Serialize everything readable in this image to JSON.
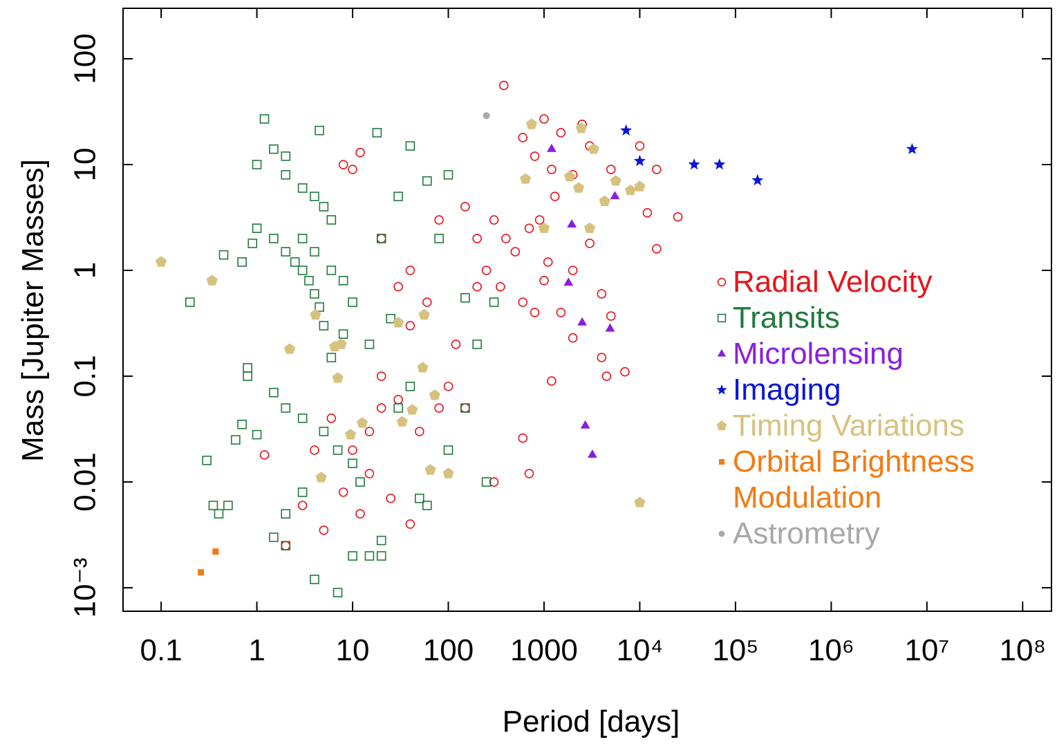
{
  "chart_data": {
    "type": "scatter",
    "x_label": "Period [days]",
    "y_label": "Mass [Jupiter Masses]",
    "xscale": "log",
    "yscale": "log",
    "xlim": [
      0.04,
      200000000
    ],
    "ylim": [
      0.0006,
      300
    ],
    "xticks": [
      0.1,
      1,
      10,
      100,
      1000,
      {
        "value": 10000,
        "label": "10⁴"
      },
      {
        "value": 100000,
        "label": "10⁵"
      },
      {
        "value": 1000000,
        "label": "10⁶"
      },
      {
        "value": 10000000,
        "label": "10⁷"
      },
      {
        "value": 100000000,
        "label": "10⁸"
      }
    ],
    "yticks": [
      {
        "value": 0.001,
        "label": "10⁻³"
      },
      0.01,
      0.1,
      1,
      10,
      100
    ],
    "legend": "right",
    "series": [
      {
        "name": "Radial Velocity",
        "color": "#e8141c",
        "marker": "circle-open",
        "x": [
          380,
          1000,
          1500,
          2500,
          600,
          800,
          1200,
          2000,
          3000,
          5000,
          10000,
          15000,
          25000,
          12000,
          15000,
          400,
          500,
          700,
          900,
          1100,
          1300,
          300,
          200,
          150,
          250,
          350,
          600,
          800,
          1000,
          1500,
          2000,
          3000,
          4000,
          5000,
          4000,
          4500,
          7000,
          2000,
          1200,
          600,
          700,
          300,
          150,
          100,
          60,
          40,
          20,
          30,
          50,
          10,
          15,
          12,
          8,
          5,
          3,
          2,
          1.2,
          8,
          10,
          12,
          20,
          40,
          80,
          120,
          200,
          30,
          20,
          6,
          4,
          25,
          40,
          15,
          80
        ],
        "values": [
          56,
          27,
          20,
          24,
          18,
          12,
          9,
          8,
          15,
          9,
          15,
          9,
          3.2,
          3.5,
          1.6,
          2,
          1.5,
          2.5,
          3,
          1.2,
          5,
          3,
          2,
          4,
          1,
          0.7,
          0.5,
          0.4,
          0.8,
          0.4,
          1,
          1.8,
          0.6,
          0.37,
          0.15,
          0.1,
          0.11,
          0.23,
          0.09,
          0.026,
          0.012,
          0.01,
          0.05,
          0.08,
          0.5,
          0.3,
          0.1,
          0.06,
          0.03,
          0.02,
          0.012,
          0.005,
          0.008,
          0.0035,
          0.006,
          0.0025,
          0.018,
          10,
          9,
          13,
          2,
          1,
          3,
          0.2,
          0.7,
          0.7,
          0.05,
          0.04,
          0.02,
          0.007,
          0.004,
          0.03,
          0.05
        ]
      },
      {
        "name": "Transits",
        "color": "#1e7a3c",
        "marker": "square-open",
        "x": [
          1.2,
          1.5,
          2,
          1,
          2,
          3,
          4,
          5,
          6,
          1,
          1.5,
          2,
          2.5,
          3,
          3.5,
          4,
          4.5,
          5,
          3,
          4,
          6,
          8,
          10,
          20,
          30,
          40,
          18,
          4.5,
          0.9,
          0.7,
          0.2,
          0.45,
          0.8,
          0.8,
          1.5,
          2,
          3,
          5,
          7,
          10,
          12,
          3,
          2,
          1.5,
          2,
          4,
          7,
          10,
          15,
          20,
          20,
          0.3,
          0.35,
          0.5,
          0.7,
          0.4,
          50,
          60,
          100,
          150,
          250,
          200,
          150,
          300,
          80,
          60,
          100,
          0.6,
          1,
          30,
          40,
          25,
          15,
          8,
          6
        ],
        "values": [
          27,
          14,
          12,
          10,
          8,
          6,
          5,
          4,
          3,
          2.5,
          2,
          1.5,
          1.2,
          1,
          0.8,
          0.6,
          0.45,
          0.3,
          2,
          1.5,
          1,
          0.8,
          0.5,
          2,
          5,
          15,
          20,
          21,
          1.8,
          1.2,
          0.5,
          1.4,
          0.12,
          0.1,
          0.07,
          0.05,
          0.04,
          0.03,
          0.02,
          0.015,
          0.01,
          0.008,
          0.005,
          0.003,
          0.0025,
          0.0012,
          0.0009,
          0.002,
          0.002,
          0.0028,
          0.002,
          0.016,
          0.006,
          0.006,
          0.035,
          0.005,
          0.007,
          0.006,
          0.02,
          0.05,
          0.01,
          0.2,
          0.55,
          0.5,
          2,
          7,
          8,
          0.025,
          0.028,
          0.05,
          0.08,
          0.35,
          0.2,
          0.25,
          0.15
        ]
      },
      {
        "name": "Microlensing",
        "color": "#8a1ee0",
        "marker": "triangle",
        "x": [
          1200,
          1950,
          1800,
          2500,
          4900,
          5500,
          2700,
          3200
        ],
        "values": [
          14,
          2.7,
          0.76,
          0.32,
          0.28,
          5,
          0.034,
          0.018
        ]
      },
      {
        "name": "Imaging",
        "color": "#0a16d6",
        "marker": "star",
        "x": [
          7200,
          10000,
          37000,
          68000,
          170000,
          7000000
        ],
        "values": [
          21,
          10.8,
          10,
          10,
          7.1,
          14
        ]
      },
      {
        "name": "Timing Variations",
        "color": "#d6c27e",
        "marker": "pentagon",
        "x": [
          0.1,
          0.34,
          2.2,
          4.1,
          4.7,
          7,
          6.5,
          7.6,
          9.5,
          12.6,
          30,
          56,
          54,
          33,
          72,
          65,
          100,
          740,
          640,
          1000,
          1850,
          2450,
          2300,
          3000,
          3300,
          4300,
          5600,
          10000,
          10000,
          8000,
          42
        ],
        "values": [
          1.2,
          0.8,
          0.18,
          0.38,
          0.011,
          0.096,
          0.19,
          0.2,
          0.028,
          0.036,
          0.32,
          0.38,
          0.12,
          0.037,
          0.066,
          0.013,
          0.012,
          24,
          7.3,
          2.5,
          7.7,
          22,
          6,
          2.5,
          14,
          4.5,
          7,
          6.2,
          0.0064,
          5.7,
          0.048
        ]
      },
      {
        "name": "Orbital Brightness Modulation",
        "color": "#f27b12",
        "marker": "square",
        "x": [
          0.26,
          0.37
        ],
        "values": [
          0.0014,
          0.0022
        ]
      },
      {
        "name": "Astrometry",
        "color": "#a8a8a8",
        "marker": "dot",
        "x": [
          250
        ],
        "values": [
          29
        ]
      }
    ]
  }
}
